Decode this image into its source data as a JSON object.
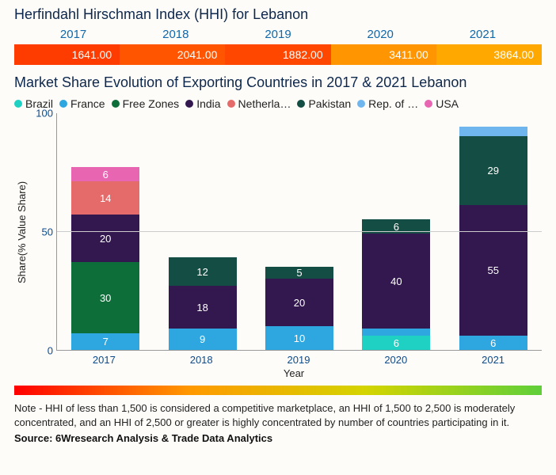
{
  "hhi": {
    "title": "Herfindahl Hirschman Index (HHI) for Lebanon",
    "years": [
      "2017",
      "2018",
      "2019",
      "2020",
      "2021"
    ],
    "values": [
      "1641.00",
      "2041.00",
      "1882.00",
      "3411.00",
      "3864.00"
    ],
    "cell_colors": [
      "#ff3c00",
      "#ff5500",
      "#ff4700",
      "#ff9500",
      "#ffa800"
    ]
  },
  "chart": {
    "title": "Market Share Evolution of Exporting Countries in 2017 & 2021 Lebanon",
    "type": "stacked-bar",
    "ylabel": "Share(% Value Share)",
    "xlabel": "Year",
    "ylim": [
      0,
      100
    ],
    "yticks": [
      0,
      50,
      100
    ],
    "grid_color": "#cccccc",
    "categories": [
      "2017",
      "2018",
      "2019",
      "2020",
      "2021"
    ],
    "legend": [
      {
        "label": "Brazil",
        "color": "#1fd1c2"
      },
      {
        "label": "France",
        "color": "#2ea7e0"
      },
      {
        "label": "Free Zones",
        "color": "#0e6e3a"
      },
      {
        "label": "India",
        "color": "#33184f"
      },
      {
        "label": "Netherla…",
        "color": "#e56a6a"
      },
      {
        "label": "Pakistan",
        "color": "#144d44"
      },
      {
        "label": "Rep. of …",
        "color": "#6fb6ef"
      },
      {
        "label": "USA",
        "color": "#e765b1"
      }
    ],
    "stacks": {
      "2017": [
        {
          "series": "France",
          "value": 7,
          "color": "#2ea7e0",
          "label": "7"
        },
        {
          "series": "Free Zones",
          "value": 30,
          "color": "#0e6e3a",
          "label": "30"
        },
        {
          "series": "India",
          "value": 20,
          "color": "#33184f",
          "label": "20"
        },
        {
          "series": "Netherlands",
          "value": 14,
          "color": "#e56a6a",
          "label": "14"
        },
        {
          "series": "USA",
          "value": 6,
          "color": "#e765b1",
          "label": "6"
        }
      ],
      "2018": [
        {
          "series": "France",
          "value": 9,
          "color": "#2ea7e0",
          "label": "9"
        },
        {
          "series": "India",
          "value": 18,
          "color": "#33184f",
          "label": "18"
        },
        {
          "series": "Pakistan",
          "value": 12,
          "color": "#144d44",
          "label": "12"
        }
      ],
      "2019": [
        {
          "series": "France",
          "value": 10,
          "color": "#2ea7e0",
          "label": "10"
        },
        {
          "series": "India",
          "value": 20,
          "color": "#33184f",
          "label": "20"
        },
        {
          "series": "Pakistan",
          "value": 5,
          "color": "#144d44",
          "label": "5"
        }
      ],
      "2020": [
        {
          "series": "Brazil",
          "value": 6,
          "color": "#1fd1c2",
          "label": "6"
        },
        {
          "series": "France",
          "value": 3,
          "color": "#2ea7e0",
          "label": ""
        },
        {
          "series": "India",
          "value": 40,
          "color": "#33184f",
          "label": "40"
        },
        {
          "series": "Pakistan",
          "value": 6,
          "color": "#144d44",
          "label": "6"
        }
      ],
      "2021": [
        {
          "series": "France",
          "value": 6,
          "color": "#2ea7e0",
          "label": "6"
        },
        {
          "series": "India",
          "value": 55,
          "color": "#33184f",
          "label": "55"
        },
        {
          "series": "Pakistan",
          "value": 29,
          "color": "#144d44",
          "label": "29"
        },
        {
          "series": "Rep. of",
          "value": 4,
          "color": "#6fb6ef",
          "label": ""
        }
      ]
    }
  },
  "gradient": {
    "colors": [
      "#ff0000",
      "#ff9900",
      "#d4d400",
      "#5fcf3a"
    ]
  },
  "note": "Note - HHI of less than 1,500 is considered a competitive marketplace, an HHI of 1,500 to 2,500 is moderately concentrated, and an HHI of 2,500 or greater is highly concentrated by number of countries participating in it.",
  "source": "Source: 6Wresearch Analysis & Trade Data Analytics"
}
